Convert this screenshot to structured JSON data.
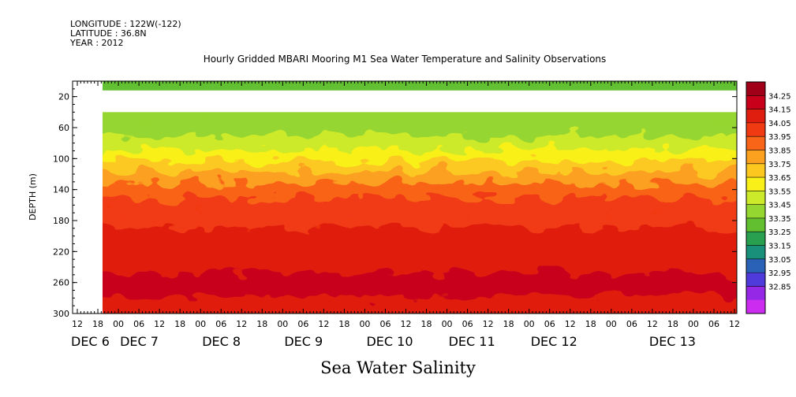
{
  "header": {
    "longitude": "LONGITUDE : 122W(-122)",
    "latitude": "LATITUDE : 36.8N",
    "year": "YEAR : 2012"
  },
  "footer": "Sea Water Salinity",
  "chart_data": {
    "type": "heatmap",
    "title": "Hourly Gridded MBARI Mooring M1 Sea Water Temperature and Salinity Observations",
    "xlabel": "",
    "ylabel": "DEPTH (m)",
    "y_ticks": [
      20,
      60,
      100,
      140,
      180,
      220,
      260,
      300
    ],
    "y_range": [
      0,
      300
    ],
    "y_reversed": true,
    "x_hour_ticks": [
      "12",
      "18",
      "00",
      "06",
      "12",
      "18",
      "00",
      "06",
      "12",
      "18",
      "00",
      "06",
      "12",
      "18",
      "00",
      "06",
      "12",
      "18",
      "00",
      "06",
      "12",
      "18",
      "00",
      "06",
      "12",
      "18",
      "00",
      "06",
      "12",
      "18",
      "00",
      "06",
      "12"
    ],
    "x_day_labels": [
      "DEC  6",
      "DEC  7",
      "DEC  8",
      "DEC  9",
      "DEC 10",
      "DEC 11",
      "DEC 12",
      "DEC 13"
    ],
    "x_range": [
      "2012-12-06 09:00",
      "2012-12-13 15:00"
    ],
    "data_start": "2012-12-06 18:00",
    "missing_depth_band_m": [
      12,
      40
    ],
    "colorbar": {
      "levels": [
        "34.25",
        "34.15",
        "34.05",
        "33.95",
        "33.85",
        "33.75",
        "33.65",
        "33.55",
        "33.45",
        "33.35",
        "33.25",
        "33.15",
        "33.05",
        "32.95",
        "32.85"
      ],
      "colors": [
        "#a00018",
        "#c8001a",
        "#e01e10",
        "#f03a12",
        "#f86418",
        "#fca020",
        "#fcc820",
        "#f8f018",
        "#ccea2a",
        "#96d630",
        "#62c030",
        "#28a050",
        "#18907a",
        "#2a62b8",
        "#4f3adc",
        "#9428e6",
        "#cc2cf0"
      ]
    },
    "salinity_profile": [
      {
        "depth": 10,
        "value": 33.3
      },
      {
        "depth": 40,
        "value": 33.35
      },
      {
        "depth": 60,
        "value": 33.4
      },
      {
        "depth": 80,
        "value": 33.5
      },
      {
        "depth": 95,
        "value": 33.62
      },
      {
        "depth": 110,
        "value": 33.73
      },
      {
        "depth": 125,
        "value": 33.84
      },
      {
        "depth": 140,
        "value": 33.92
      },
      {
        "depth": 160,
        "value": 33.98
      },
      {
        "depth": 180,
        "value": 34.02
      },
      {
        "depth": 200,
        "value": 34.06
      },
      {
        "depth": 220,
        "value": 34.1
      },
      {
        "depth": 240,
        "value": 34.14
      },
      {
        "depth": 255,
        "value": 34.22
      },
      {
        "depth": 270,
        "value": 34.18
      },
      {
        "depth": 285,
        "value": 34.1
      },
      {
        "depth": 300,
        "value": 34.05
      }
    ]
  }
}
